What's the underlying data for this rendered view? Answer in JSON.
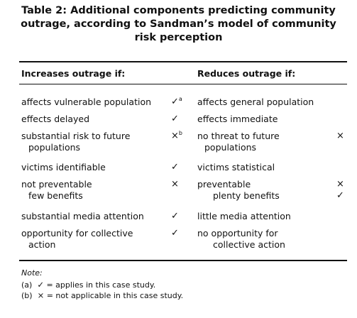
{
  "title": [
    "Table 2: Additional components predicting community",
    "outrage, according to Sandman’s model of community",
    "risk perception"
  ],
  "headers": {
    "increases": "Increases outrage if:",
    "reduces": "Reduces outrage if:"
  },
  "rows": [
    {
      "increases": [
        "affects vulnerable population"
      ],
      "increases_mark": [
        "✓"
      ],
      "increases_mark_sup": "a",
      "reduces": [
        "affects general population"
      ],
      "reduces_mark": []
    },
    {
      "increases": [
        "effects delayed"
      ],
      "increases_mark": [
        "✓"
      ],
      "reduces": [
        "effects immediate"
      ],
      "reduces_mark": []
    },
    {
      "increases": [
        "substantial risk to future",
        "populations"
      ],
      "increases_mark": [
        "×"
      ],
      "increases_mark_sup": "b",
      "reduces": [
        "no threat to future",
        "populations"
      ],
      "reduces_mark": [
        "×"
      ]
    },
    {
      "increases": [
        "victims identifiable"
      ],
      "increases_mark": [
        "✓"
      ],
      "reduces": [
        "victims statistical"
      ],
      "reduces_mark": []
    },
    {
      "increases": [
        "not preventable",
        "few benefits"
      ],
      "increases_mark": [
        "×"
      ],
      "reduces": [
        "preventable",
        "plenty benefits"
      ],
      "reduces_mark": [
        "×",
        "✓"
      ]
    },
    {
      "increases": [
        "substantial media attention"
      ],
      "increases_mark": [
        "✓"
      ],
      "reduces": [
        "little media attention"
      ],
      "reduces_mark": []
    },
    {
      "increases": [
        "opportunity for collective",
        "action"
      ],
      "increases_mark": [
        "✓"
      ],
      "reduces": [
        "no opportunity for",
        "collective action"
      ],
      "reduces_mark": []
    }
  ],
  "note": {
    "label": "Note:",
    "a_prefix": "(a)",
    "a_symbol": "✓",
    "a_text": "= applies in this case study.",
    "b_prefix": "(b)",
    "b_symbol": "×",
    "b_text": "= not applicable in this case study."
  }
}
